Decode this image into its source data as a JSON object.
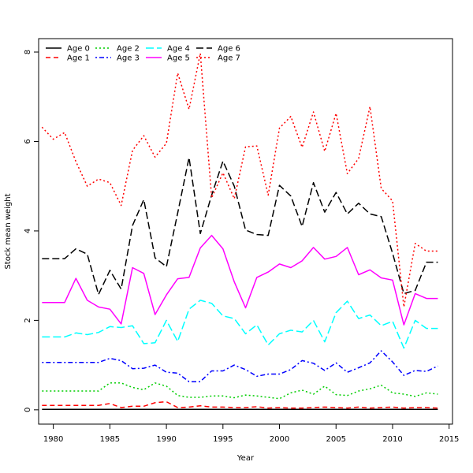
{
  "chart_data": {
    "type": "line",
    "xlabel": "Year",
    "ylabel": "Stock mean weight",
    "xlim": [
      1978.7,
      2015.3
    ],
    "ylim": [
      -0.32,
      8.3
    ],
    "xticks": [
      1980,
      1985,
      1990,
      1995,
      2000,
      2005,
      2010,
      2015
    ],
    "yticks": [
      0,
      2,
      4,
      6,
      8
    ],
    "legend_position": "top-left",
    "x": [
      1979,
      1980,
      1981,
      1982,
      1983,
      1984,
      1985,
      1986,
      1987,
      1988,
      1989,
      1990,
      1991,
      1992,
      1993,
      1994,
      1995,
      1996,
      1997,
      1998,
      1999,
      2000,
      2001,
      2002,
      2003,
      2004,
      2005,
      2006,
      2007,
      2008,
      2009,
      2010,
      2011,
      2012,
      2013,
      2014
    ],
    "series": [
      {
        "name": "Age 0",
        "color": "#000000",
        "dash": "solid",
        "values": [
          0.01,
          0.01,
          0.01,
          0.01,
          0.01,
          0.01,
          0.01,
          0.01,
          0.01,
          0.01,
          0.01,
          0.01,
          0.01,
          0.01,
          0.01,
          0.01,
          0.01,
          0.01,
          0.01,
          0.01,
          0.01,
          0.01,
          0.01,
          0.01,
          0.01,
          0.01,
          0.01,
          0.01,
          0.01,
          0.01,
          0.01,
          0.01,
          0.01,
          0.01,
          0.01,
          0.01
        ]
      },
      {
        "name": "Age 1",
        "color": "#ff0000",
        "dash": "dashed",
        "values": [
          0.1,
          0.1,
          0.1,
          0.1,
          0.1,
          0.1,
          0.14,
          0.05,
          0.08,
          0.08,
          0.16,
          0.18,
          0.05,
          0.06,
          0.09,
          0.06,
          0.06,
          0.05,
          0.05,
          0.07,
          0.04,
          0.05,
          0.04,
          0.04,
          0.05,
          0.06,
          0.05,
          0.04,
          0.06,
          0.04,
          0.05,
          0.06,
          0.04,
          0.05,
          0.05,
          0.04
        ]
      },
      {
        "name": "Age 2",
        "color": "#00cd00",
        "dash": "dotted",
        "values": [
          0.42,
          0.42,
          0.42,
          0.42,
          0.42,
          0.42,
          0.6,
          0.6,
          0.5,
          0.45,
          0.6,
          0.53,
          0.32,
          0.28,
          0.28,
          0.31,
          0.31,
          0.27,
          0.33,
          0.31,
          0.28,
          0.25,
          0.38,
          0.44,
          0.35,
          0.53,
          0.34,
          0.32,
          0.42,
          0.47,
          0.55,
          0.38,
          0.35,
          0.3,
          0.38,
          0.35
        ]
      },
      {
        "name": "Age 3",
        "color": "#0000ff",
        "dash": "dotdash",
        "values": [
          1.06,
          1.06,
          1.06,
          1.06,
          1.06,
          1.06,
          1.15,
          1.1,
          0.92,
          0.93,
          1.0,
          0.84,
          0.82,
          0.63,
          0.63,
          0.87,
          0.87,
          1.0,
          0.9,
          0.75,
          0.8,
          0.8,
          0.9,
          1.1,
          1.04,
          0.88,
          1.05,
          0.84,
          0.94,
          1.05,
          1.32,
          1.07,
          0.77,
          0.88,
          0.86,
          0.98
        ]
      },
      {
        "name": "Age 4",
        "color": "#00ffff",
        "dash": "longdash",
        "values": [
          1.63,
          1.63,
          1.63,
          1.72,
          1.68,
          1.73,
          1.86,
          1.84,
          1.88,
          1.48,
          1.5,
          2.0,
          1.53,
          2.25,
          2.45,
          2.38,
          2.1,
          2.04,
          1.7,
          1.9,
          1.45,
          1.7,
          1.78,
          1.74,
          2.0,
          1.52,
          2.17,
          2.43,
          2.04,
          2.12,
          1.88,
          1.98,
          1.38,
          2.0,
          1.82,
          1.82
        ]
      },
      {
        "name": "Age 5",
        "color": "#ff00ff",
        "dash": "solid",
        "values": [
          2.4,
          2.4,
          2.4,
          2.94,
          2.45,
          2.3,
          2.25,
          1.92,
          3.18,
          3.05,
          2.13,
          2.57,
          2.93,
          2.96,
          3.62,
          3.9,
          3.6,
          2.86,
          2.28,
          2.96,
          3.08,
          3.26,
          3.18,
          3.33,
          3.63,
          3.37,
          3.43,
          3.63,
          3.02,
          3.13,
          2.95,
          2.9,
          1.9,
          2.6,
          2.49,
          2.49
        ]
      },
      {
        "name": "Age 6",
        "color": "#000000",
        "dash": "twodash",
        "values": [
          3.38,
          3.38,
          3.38,
          3.6,
          3.48,
          2.58,
          3.12,
          2.7,
          4.12,
          4.7,
          3.4,
          3.2,
          4.4,
          5.64,
          3.94,
          4.8,
          5.56,
          5.0,
          4.02,
          3.92,
          3.9,
          5.02,
          4.78,
          4.1,
          5.08,
          4.42,
          4.86,
          4.38,
          4.62,
          4.38,
          4.32,
          3.5,
          2.6,
          2.67,
          3.3,
          3.3
        ]
      },
      {
        "name": "Age 7",
        "color": "#ff0000",
        "dash": "dotted",
        "values": [
          6.32,
          6.05,
          6.2,
          5.55,
          5.0,
          5.16,
          5.08,
          4.57,
          5.8,
          6.13,
          5.65,
          5.96,
          7.53,
          6.72,
          7.97,
          4.74,
          5.3,
          4.72,
          5.88,
          5.9,
          4.8,
          6.3,
          6.56,
          5.87,
          6.66,
          5.78,
          6.63,
          5.28,
          5.62,
          6.78,
          4.95,
          4.67,
          2.3,
          3.72,
          3.55,
          3.55
        ]
      }
    ]
  }
}
